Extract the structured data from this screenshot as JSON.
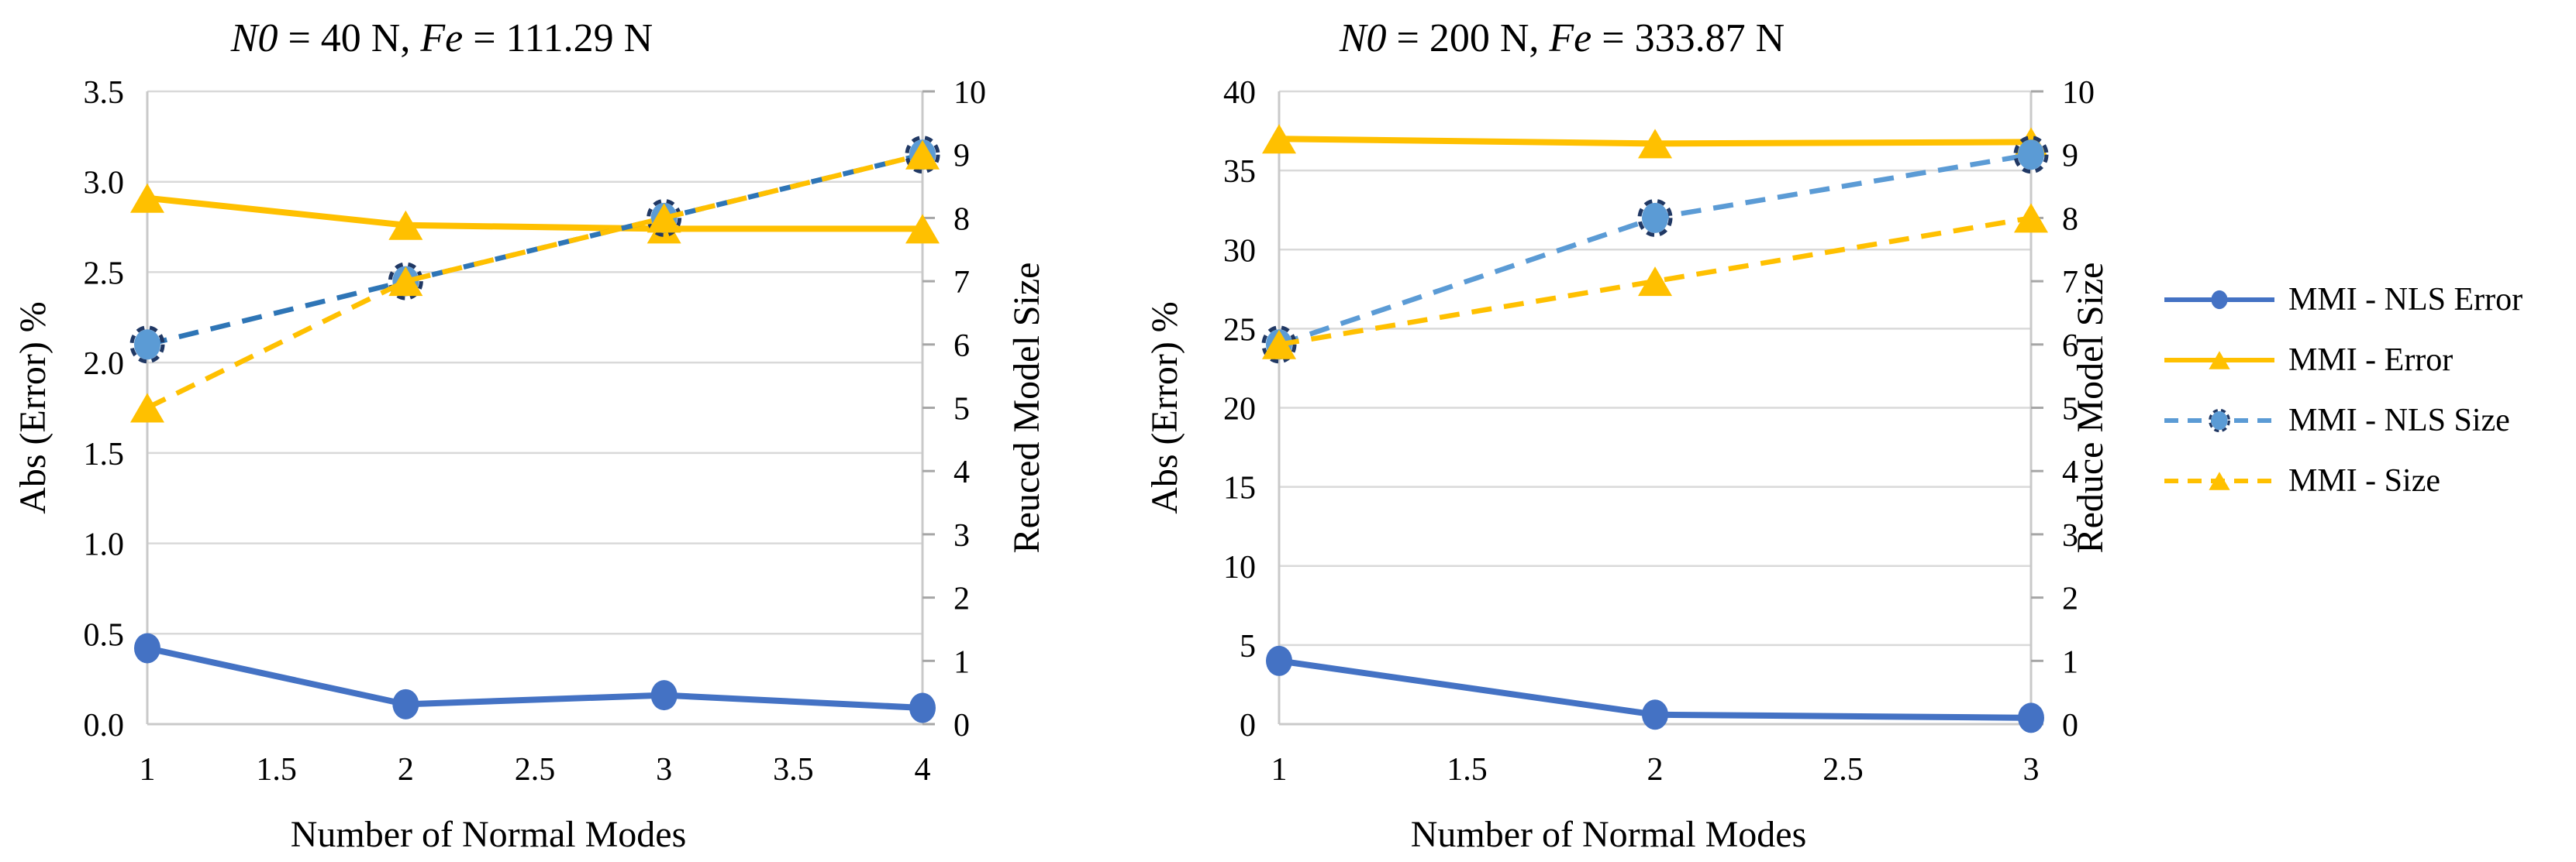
{
  "figure": {
    "background": "#FFFFFF",
    "text_color": "#000000",
    "gridline_color": "#D9D9D9",
    "axis_line_color": "#C9C9C9",
    "tick_mark_color": "#A6A6A6"
  },
  "chart_data": [
    {
      "type": "line",
      "title": "N0 = 40 N, Fe = 111.29 N",
      "title_parts": [
        {
          "text": "N0",
          "italic": true
        },
        {
          "text": " = 40 N, ",
          "italic": false
        },
        {
          "text": "Fe",
          "italic": true
        },
        {
          "text": " = 111.29 N",
          "italic": false
        }
      ],
      "xlabel": "Number of Normal Modes",
      "ylabel_left": "Abs (Error) %",
      "ylabel_right": "Reuced Model Size",
      "x": [
        1,
        2,
        3,
        4
      ],
      "xlim": [
        1,
        4
      ],
      "xticks": [
        "1",
        "1.5",
        "2",
        "2.5",
        "3",
        "3.5",
        "4"
      ],
      "ylim_left": [
        0,
        3.5
      ],
      "yticks_left": [
        "0.0",
        "0.5",
        "1.0",
        "1.5",
        "2.0",
        "2.5",
        "3.0",
        "3.5"
      ],
      "ylim_right": [
        0,
        10
      ],
      "yticks_right": [
        "0",
        "1",
        "2",
        "3",
        "4",
        "5",
        "6",
        "7",
        "8",
        "9",
        "10"
      ],
      "grid": "horizontal",
      "legend_position": "none",
      "series": [
        {
          "name": "MMI - NLS Error",
          "axis": "left",
          "line": "solid",
          "marker": "circle",
          "color": "#4472C4",
          "marker_fill": "#4472C4",
          "values": [
            0.42,
            0.11,
            0.16,
            0.09
          ]
        },
        {
          "name": "MMI - Error",
          "axis": "left",
          "line": "solid",
          "marker": "triangle",
          "color": "#FFC000",
          "marker_fill": "#FFC000",
          "values": [
            2.91,
            2.76,
            2.74,
            2.74
          ]
        },
        {
          "name": "MMI - NLS Size",
          "axis": "right",
          "line": "dashed",
          "marker": "circle-ring",
          "color": "#2E75B6",
          "marker_fill": "#5B9BD5",
          "values": [
            6,
            7,
            8,
            9
          ]
        },
        {
          "name": "MMI - Size",
          "axis": "right",
          "line": "dashed",
          "marker": "triangle",
          "color": "#FFC000",
          "marker_fill": "#FFC000",
          "values": [
            5,
            7,
            8,
            9
          ]
        }
      ]
    },
    {
      "type": "line",
      "title": "N0 = 200 N, Fe = 333.87 N",
      "title_parts": [
        {
          "text": "N0",
          "italic": true
        },
        {
          "text": " = 200 N, ",
          "italic": false
        },
        {
          "text": "Fe",
          "italic": true
        },
        {
          "text": " = 333.87 N",
          "italic": false
        }
      ],
      "xlabel": "Number of Normal Modes",
      "ylabel_left": "Abs (Error) %",
      "ylabel_right": "Reduce Model Size",
      "x": [
        1,
        2,
        3
      ],
      "xlim": [
        1,
        3
      ],
      "xticks": [
        "1",
        "1.5",
        "2",
        "2.5",
        "3"
      ],
      "ylim_left": [
        0,
        40
      ],
      "yticks_left": [
        "0",
        "5",
        "10",
        "15",
        "20",
        "25",
        "30",
        "35",
        "40"
      ],
      "ylim_right": [
        0,
        10
      ],
      "yticks_right": [
        "0",
        "1",
        "2",
        "3",
        "4",
        "5",
        "6",
        "7",
        "8",
        "9",
        "10"
      ],
      "grid": "horizontal",
      "legend_position": "none",
      "series": [
        {
          "name": "MMI - NLS Error",
          "axis": "left",
          "line": "solid",
          "marker": "circle",
          "color": "#4472C4",
          "marker_fill": "#4472C4",
          "values": [
            4.0,
            0.6,
            0.4
          ]
        },
        {
          "name": "MMI - Error",
          "axis": "left",
          "line": "solid",
          "marker": "triangle",
          "color": "#FFC000",
          "marker_fill": "#FFC000",
          "values": [
            37.0,
            36.7,
            36.8
          ]
        },
        {
          "name": "MMI - NLS Size",
          "axis": "right",
          "line": "dashed",
          "marker": "circle-ring",
          "color": "#5B9BD5",
          "marker_fill": "#5B9BD5",
          "values": [
            6,
            8,
            9
          ]
        },
        {
          "name": "MMI - Size",
          "axis": "right",
          "line": "dashed",
          "marker": "triangle",
          "color": "#FFC000",
          "marker_fill": "#FFC000",
          "values": [
            6,
            7,
            8
          ]
        }
      ]
    }
  ],
  "legend": {
    "position": "right",
    "items": [
      {
        "label": "MMI - NLS Error",
        "line": "solid",
        "marker": "circle",
        "color": "#4472C4",
        "marker_fill": "#4472C4"
      },
      {
        "label": "MMI - Error",
        "line": "solid",
        "marker": "triangle",
        "color": "#FFC000",
        "marker_fill": "#FFC000"
      },
      {
        "label": "MMI - NLS Size",
        "line": "dashed",
        "marker": "circle-ring",
        "color": "#5B9BD5",
        "marker_fill": "#5B9BD5"
      },
      {
        "label": "MMI - Size",
        "line": "dashed",
        "marker": "triangle",
        "color": "#FFC000",
        "marker_fill": "#FFC000"
      }
    ]
  }
}
